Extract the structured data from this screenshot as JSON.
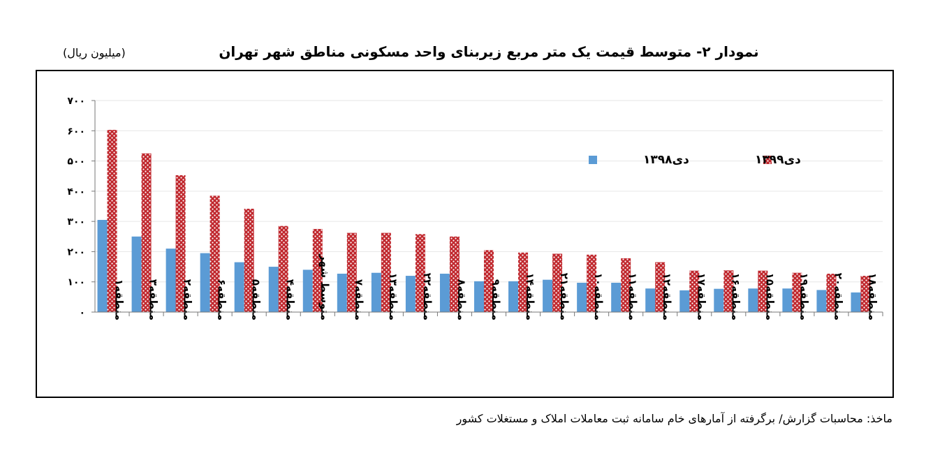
{
  "title": "نمودار ۲- متوسط قیمت یک متر مربع زیربنای واحد مسکونی مناطق شهر تهران",
  "unit_label": "(میلیون ریال)",
  "source": "ماخذ: محاسبات گزارش/ برگرفته از آمارهای خام سامانه ثبت معاملات املاک و مستغلات کشور",
  "colors": {
    "series_1398": "#5b9bd5",
    "series_1399": "#c0272d",
    "pattern_dot": "#ffffff"
  },
  "chart_data": {
    "type": "bar",
    "title": "نمودار ۲- متوسط قیمت یک متر مربع زیربنای واحد مسکونی مناطق شهر تهران",
    "ylabel": "(میلیون ریال)",
    "ylim": [
      0,
      700
    ],
    "yticks": [
      0,
      100,
      200,
      300,
      400,
      500,
      600,
      700
    ],
    "ytick_labels": [
      "۰",
      "۱۰۰",
      "۲۰۰",
      "۳۰۰",
      "۴۰۰",
      "۵۰۰",
      "۶۰۰",
      "۷۰۰"
    ],
    "grid": true,
    "legend_position": "top-right",
    "categories": [
      "منطقه۱",
      "منطقه۳",
      "منطقه۲",
      "منطقه۶",
      "منطقه۵",
      "منطقه۴",
      "متوسط شهر",
      "منطقه۷",
      "منطقه۱۳",
      "منطقه۲۲",
      "منطقه۸",
      "منطقه۹",
      "منطقه۱۴",
      "منطقه۲۱",
      "منطقه۱۰",
      "منطقه۱۱",
      "منطقه۱۲",
      "منطقه۱۷",
      "منطقه۱۶",
      "منطقه۱۵",
      "منطقه۱۹",
      "منطقه۲۰",
      "منطقه۱۸"
    ],
    "series": [
      {
        "name": "دی۱۳۹۸",
        "values": [
          305,
          250,
          210,
          195,
          165,
          150,
          140,
          127,
          130,
          120,
          127,
          102,
          102,
          107,
          97,
          97,
          78,
          72,
          77,
          78,
          78,
          73,
          65
        ]
      },
      {
        "name": "دی۱۳۹۹",
        "values": [
          603,
          525,
          453,
          385,
          342,
          285,
          275,
          262,
          262,
          258,
          250,
          205,
          197,
          193,
          190,
          178,
          165,
          137,
          138,
          137,
          130,
          127,
          120
        ]
      }
    ]
  }
}
